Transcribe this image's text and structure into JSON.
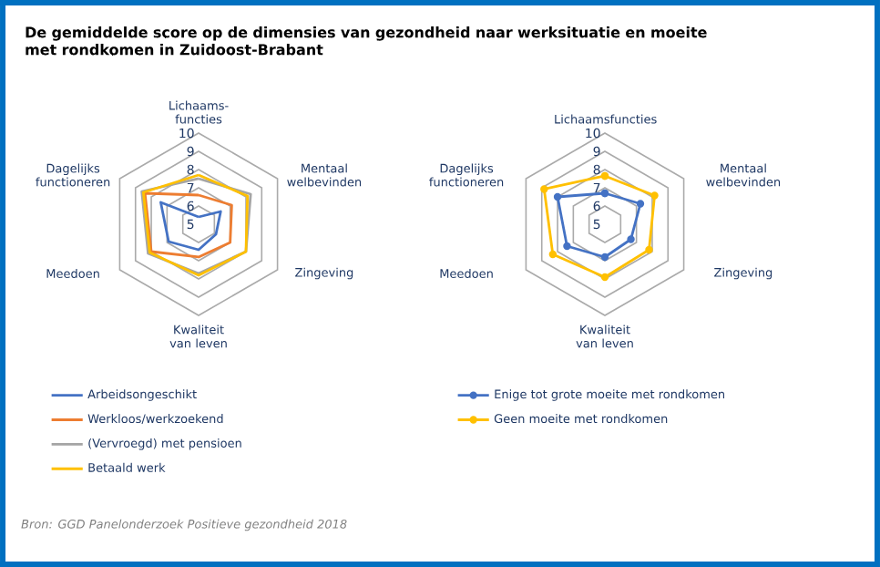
{
  "chart_data": [
    {
      "type": "radar",
      "title": "De gemiddelde score op de dimensies van gezondheid naar werksituatie en moeite met rondkomen in Zuidoost-Brabant",
      "categories": [
        "Lichaams-functies",
        "Mentaal welbevinden",
        "Zingeving",
        "Kwaliteit van leven",
        "Meedoen",
        "Dagelijks functioneren"
      ],
      "ylim": [
        5,
        10
      ],
      "yticks": [
        5,
        6,
        7,
        8,
        9,
        10
      ],
      "grid": true,
      "legend": "bottom",
      "marker": "none",
      "series": [
        {
          "name": "Arbeidsongeschikt",
          "color": "#4472c4",
          "values": [
            5.4,
            6.4,
            6.1,
            6.4,
            6.9,
            7.4
          ]
        },
        {
          "name": "Werkloos/werkzoekend",
          "color": "#ed7d31",
          "values": [
            6.6,
            7.1,
            7.0,
            6.8,
            8.0,
            8.4
          ]
        },
        {
          "name": "(Vervroegd) met pensioen",
          "color": "#a5a5a5",
          "values": [
            7.5,
            8.3,
            8.0,
            7.7,
            8.2,
            8.6
          ]
        },
        {
          "name": "Betaald werk",
          "color": "#ffc000",
          "values": [
            7.7,
            8.1,
            8.0,
            7.8,
            8.1,
            8.5
          ]
        }
      ],
      "annotations": [
        "Bron: GGD Panelonderzoek Positieve gezondheid 2018"
      ]
    },
    {
      "type": "radar",
      "categories": [
        "Lichaamsfuncties",
        "Mentaal welbevinden",
        "Zingeving",
        "Kwaliteit van leven",
        "Meedoen",
        "Dagelijks functioneren"
      ],
      "ylim": [
        5,
        10
      ],
      "yticks": [
        5,
        6,
        7,
        8,
        9,
        10
      ],
      "grid": true,
      "legend": "bottom",
      "marker": "circle",
      "series": [
        {
          "name": "Enige tot grote moeite met rondkomen",
          "color": "#4472c4",
          "values": [
            6.7,
            7.25,
            6.65,
            6.8,
            7.4,
            8.0
          ]
        },
        {
          "name": "Geen moeite met rondkomen",
          "color": "#ffc000",
          "values": [
            7.65,
            8.15,
            7.8,
            7.9,
            8.3,
            8.85
          ]
        }
      ]
    }
  ]
}
